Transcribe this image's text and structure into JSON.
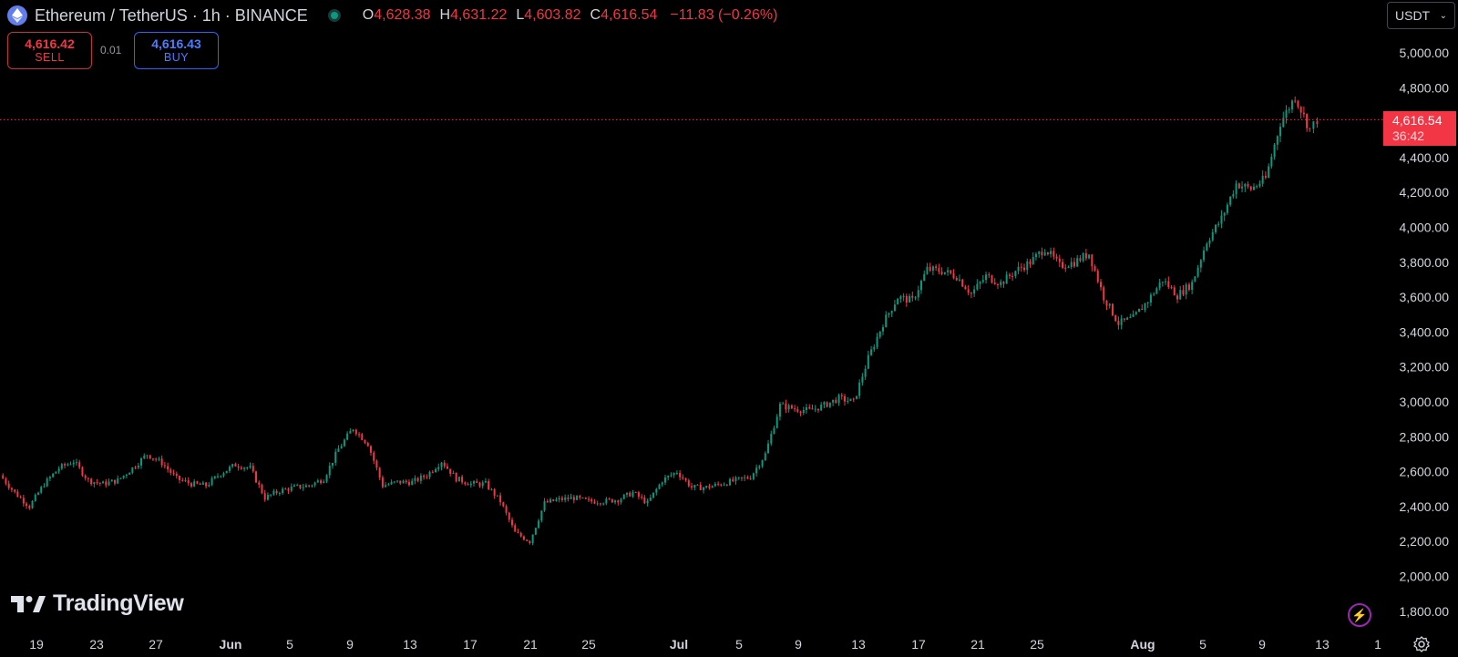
{
  "header": {
    "title": "Ethereum / TetherUS · 1h · BINANCE",
    "ohlc": {
      "o_label": "O",
      "o": "4,628.38",
      "h_label": "H",
      "h": "4,631.22",
      "l_label": "L",
      "l": "4,603.82",
      "c_label": "C",
      "c": "4,616.54",
      "change": "−11.83 (−0.26%)"
    }
  },
  "trade": {
    "sell_price": "4,616.42",
    "sell_label": "SELL",
    "spread": "0.01",
    "buy_price": "4,616.43",
    "buy_label": "BUY"
  },
  "currency": {
    "selected": "USDT"
  },
  "last_price": {
    "value": "4,616.54",
    "countdown": "36:42"
  },
  "branding": {
    "name": "TradingView"
  },
  "colors": {
    "up": "#089981",
    "down": "#f23645",
    "background": "#000000",
    "axis_text": "#d1d4dc",
    "price_line": "#f23645",
    "buy_border": "#2962ff"
  },
  "chart_data": {
    "type": "candlestick",
    "symbol": "ETHUSDT",
    "interval": "1h",
    "ylim": [
      1700,
      5100
    ],
    "y_ticks": [
      "1,800.00",
      "2,000.00",
      "2,200.00",
      "2,400.00",
      "2,600.00",
      "2,800.00",
      "3,000.00",
      "3,200.00",
      "3,400.00",
      "3,600.00",
      "3,800.00",
      "4,000.00",
      "4,200.00",
      "4,400.00",
      "4,800.00",
      "5,000.00"
    ],
    "x_ticks": [
      "19",
      "23",
      "27",
      "Jun",
      "5",
      "9",
      "13",
      "17",
      "21",
      "25",
      "Jul",
      "5",
      "9",
      "13",
      "17",
      "21",
      "25",
      "Aug",
      "5",
      "9",
      "13",
      "1"
    ],
    "last_price": 4616.54,
    "grid": false,
    "price_path": [
      {
        "d": "2025-05-18",
        "close": 2580
      },
      {
        "d": "2025-05-19",
        "close": 2480
      },
      {
        "d": "2025-05-20",
        "close": 2400
      },
      {
        "d": "2025-05-21",
        "close": 2530
      },
      {
        "d": "2025-05-22",
        "close": 2620
      },
      {
        "d": "2025-05-23",
        "close": 2660
      },
      {
        "d": "2025-05-24",
        "close": 2550
      },
      {
        "d": "2025-05-25",
        "close": 2530
      },
      {
        "d": "2025-05-26",
        "close": 2550
      },
      {
        "d": "2025-05-27",
        "close": 2620
      },
      {
        "d": "2025-05-28",
        "close": 2700
      },
      {
        "d": "2025-05-29",
        "close": 2650
      },
      {
        "d": "2025-05-30",
        "close": 2560
      },
      {
        "d": "2025-05-31",
        "close": 2530
      },
      {
        "d": "2025-06-01",
        "close": 2520
      },
      {
        "d": "2025-06-02",
        "close": 2590
      },
      {
        "d": "2025-06-03",
        "close": 2640
      },
      {
        "d": "2025-06-04",
        "close": 2620
      },
      {
        "d": "2025-06-05",
        "close": 2450
      },
      {
        "d": "2025-06-06",
        "close": 2490
      },
      {
        "d": "2025-06-07",
        "close": 2510
      },
      {
        "d": "2025-06-08",
        "close": 2520
      },
      {
        "d": "2025-06-09",
        "close": 2560
      },
      {
        "d": "2025-06-10",
        "close": 2730
      },
      {
        "d": "2025-06-11",
        "close": 2850
      },
      {
        "d": "2025-06-12",
        "close": 2760
      },
      {
        "d": "2025-06-13",
        "close": 2520
      },
      {
        "d": "2025-06-14",
        "close": 2540
      },
      {
        "d": "2025-06-15",
        "close": 2540
      },
      {
        "d": "2025-06-16",
        "close": 2580
      },
      {
        "d": "2025-06-17",
        "close": 2660
      },
      {
        "d": "2025-06-18",
        "close": 2560
      },
      {
        "d": "2025-06-19",
        "close": 2530
      },
      {
        "d": "2025-06-20",
        "close": 2530
      },
      {
        "d": "2025-06-21",
        "close": 2430
      },
      {
        "d": "2025-06-22",
        "close": 2250
      },
      {
        "d": "2025-06-23",
        "close": 2200
      },
      {
        "d": "2025-06-24",
        "close": 2420
      },
      {
        "d": "2025-06-25",
        "close": 2440
      },
      {
        "d": "2025-06-26",
        "close": 2450
      },
      {
        "d": "2025-06-27",
        "close": 2430
      },
      {
        "d": "2025-06-28",
        "close": 2430
      },
      {
        "d": "2025-06-29",
        "close": 2440
      },
      {
        "d": "2025-06-30",
        "close": 2480
      },
      {
        "d": "2025-07-01",
        "close": 2420
      },
      {
        "d": "2025-07-02",
        "close": 2550
      },
      {
        "d": "2025-07-03",
        "close": 2600
      },
      {
        "d": "2025-07-04",
        "close": 2510
      },
      {
        "d": "2025-07-05",
        "close": 2510
      },
      {
        "d": "2025-07-06",
        "close": 2530
      },
      {
        "d": "2025-07-07",
        "close": 2550
      },
      {
        "d": "2025-07-08",
        "close": 2570
      },
      {
        "d": "2025-07-09",
        "close": 2700
      },
      {
        "d": "2025-07-10",
        "close": 2980
      },
      {
        "d": "2025-07-11",
        "close": 2960
      },
      {
        "d": "2025-07-12",
        "close": 2950
      },
      {
        "d": "2025-07-13",
        "close": 2980
      },
      {
        "d": "2025-07-14",
        "close": 3020
      },
      {
        "d": "2025-07-15",
        "close": 3000
      },
      {
        "d": "2025-07-16",
        "close": 3250
      },
      {
        "d": "2025-07-17",
        "close": 3450
      },
      {
        "d": "2025-07-18",
        "close": 3600
      },
      {
        "d": "2025-07-19",
        "close": 3580
      },
      {
        "d": "2025-07-20",
        "close": 3760
      },
      {
        "d": "2025-07-21",
        "close": 3750
      },
      {
        "d": "2025-07-22",
        "close": 3720
      },
      {
        "d": "2025-07-23",
        "close": 3620
      },
      {
        "d": "2025-07-24",
        "close": 3720
      },
      {
        "d": "2025-07-25",
        "close": 3680
      },
      {
        "d": "2025-07-26",
        "close": 3750
      },
      {
        "d": "2025-07-27",
        "close": 3800
      },
      {
        "d": "2025-07-28",
        "close": 3880
      },
      {
        "d": "2025-07-29",
        "close": 3780
      },
      {
        "d": "2025-07-30",
        "close": 3800
      },
      {
        "d": "2025-07-31",
        "close": 3850
      },
      {
        "d": "2025-08-01",
        "close": 3600
      },
      {
        "d": "2025-08-02",
        "close": 3450
      },
      {
        "d": "2025-08-03",
        "close": 3480
      },
      {
        "d": "2025-08-04",
        "close": 3580
      },
      {
        "d": "2025-08-05",
        "close": 3700
      },
      {
        "d": "2025-08-06",
        "close": 3610
      },
      {
        "d": "2025-08-07",
        "close": 3680
      },
      {
        "d": "2025-08-08",
        "close": 3920
      },
      {
        "d": "2025-08-09",
        "close": 4050
      },
      {
        "d": "2025-08-10",
        "close": 4250
      },
      {
        "d": "2025-08-11",
        "close": 4220
      },
      {
        "d": "2025-08-12",
        "close": 4280
      },
      {
        "d": "2025-08-13",
        "close": 4600
      },
      {
        "d": "2025-08-14",
        "close": 4750
      },
      {
        "d": "2025-08-15",
        "close": 4560
      },
      {
        "d": "2025-08-15T12:00",
        "close": 4616.54
      }
    ]
  }
}
